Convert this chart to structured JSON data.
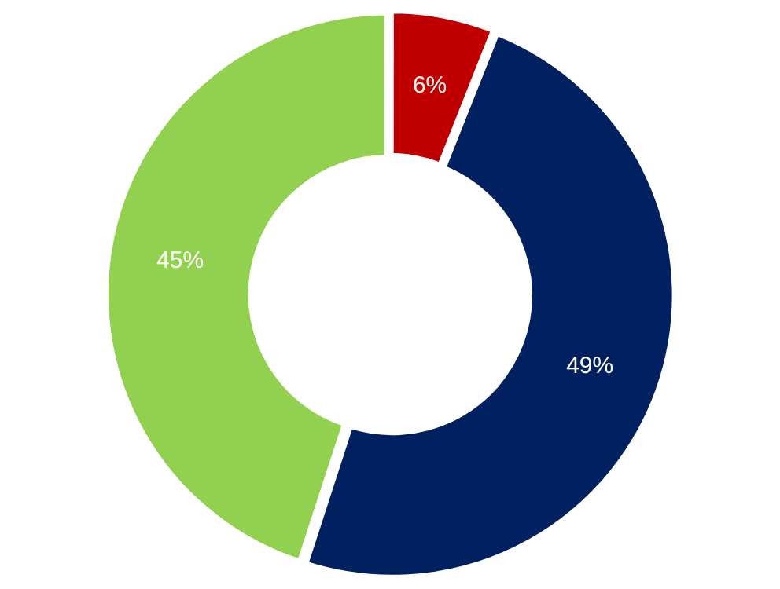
{
  "chart_data": {
    "type": "donut",
    "categories": [
      null,
      null,
      null
    ],
    "values": [
      6,
      49,
      45
    ],
    "colors": [
      "#c00000",
      "#002060",
      "#92d050"
    ],
    "value_labels": [
      "6%",
      "49%",
      "45%"
    ],
    "legend": false
  }
}
